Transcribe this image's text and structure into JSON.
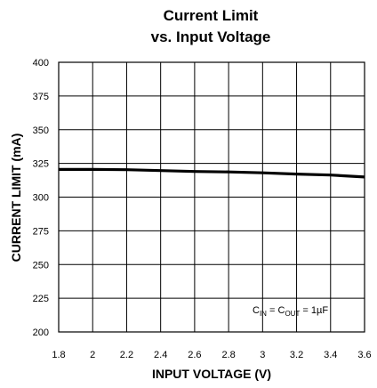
{
  "chart_data": {
    "type": "line",
    "title_line1": "Current Limit",
    "title_line2": "vs. Input Voltage",
    "xlabel": "INPUT VOLTAGE (V)",
    "ylabel": "CURRENT LIMIT (mA)",
    "xlim": [
      1.8,
      3.6
    ],
    "ylim": [
      200,
      400
    ],
    "xticks": [
      "1.8",
      "2",
      "2.2",
      "2.4",
      "2.6",
      "2.8",
      "3",
      "3.2",
      "3.4",
      "3.6"
    ],
    "yticks": [
      "200",
      "225",
      "250",
      "275",
      "300",
      "325",
      "350",
      "375",
      "400"
    ],
    "grid": true,
    "annotation": {
      "c1": "C",
      "c1_sub": "IN",
      "eq1": " = C",
      "c2_sub": "OUT",
      "eq2": " = 1µF"
    },
    "series": [
      {
        "x": [
          1.8,
          2.0,
          2.2,
          2.4,
          2.6,
          2.8,
          3.0,
          3.2,
          3.4,
          3.6
        ],
        "y": [
          320.5,
          320.5,
          320.3,
          319.7,
          319.0,
          318.7,
          318.0,
          317.1,
          316.4,
          314.9
        ]
      }
    ]
  }
}
